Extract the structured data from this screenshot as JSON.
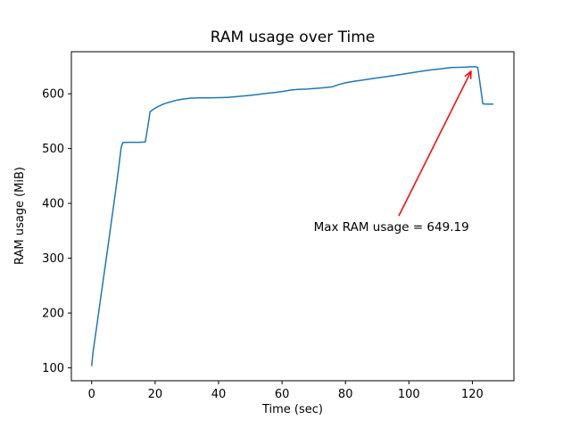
{
  "window": {
    "background": "#ffffff"
  },
  "chart_data": {
    "type": "line",
    "title": "RAM usage over Time",
    "xlabel": "Time (sec)",
    "ylabel": "RAM usage (MiB)",
    "xlim": [
      -6.4,
      133.1
    ],
    "ylim": [
      76.5,
      676.7
    ],
    "x_ticks": [
      0,
      20,
      40,
      60,
      80,
      100,
      120
    ],
    "y_ticks": [
      100,
      200,
      300,
      400,
      500,
      600
    ],
    "grid": false,
    "legend": false,
    "series": [
      {
        "name": "RAM usage",
        "color": "#1f77b4",
        "line_width": 1.5,
        "points": [
          [
            0,
            104
          ],
          [
            0.4,
            128
          ],
          [
            1.5,
            172
          ],
          [
            3,
            234
          ],
          [
            4.5,
            296
          ],
          [
            6,
            358
          ],
          [
            7.5,
            420
          ],
          [
            8.5,
            465
          ],
          [
            9.3,
            502
          ],
          [
            9.8,
            511
          ],
          [
            11,
            511.5
          ],
          [
            13,
            511.5
          ],
          [
            15,
            511.5
          ],
          [
            16.9,
            512
          ],
          [
            17.6,
            536
          ],
          [
            18.4,
            567
          ],
          [
            19.5,
            572
          ],
          [
            21,
            577
          ],
          [
            23,
            582
          ],
          [
            25,
            585.5
          ],
          [
            27,
            588.5
          ],
          [
            29,
            590.5
          ],
          [
            31,
            592
          ],
          [
            34,
            592.5
          ],
          [
            37,
            592.5
          ],
          [
            40,
            593
          ],
          [
            43,
            593.5
          ],
          [
            46,
            595
          ],
          [
            49,
            596.5
          ],
          [
            52,
            598.5
          ],
          [
            55,
            600.5
          ],
          [
            58,
            602.5
          ],
          [
            61,
            605
          ],
          [
            63,
            607
          ],
          [
            65,
            608
          ],
          [
            68,
            608.5
          ],
          [
            70,
            609.5
          ],
          [
            72,
            610.5
          ],
          [
            74,
            611.5
          ],
          [
            76,
            613
          ],
          [
            78,
            617
          ],
          [
            80,
            620
          ],
          [
            83,
            623
          ],
          [
            86,
            625.5
          ],
          [
            89,
            628
          ],
          [
            92,
            630.5
          ],
          [
            95,
            633
          ],
          [
            98,
            635.5
          ],
          [
            101,
            638.5
          ],
          [
            104,
            641
          ],
          [
            107,
            643.5
          ],
          [
            110,
            645.5
          ],
          [
            112,
            647
          ],
          [
            114,
            648
          ],
          [
            116,
            648.3
          ],
          [
            118,
            648.6
          ],
          [
            119.2,
            649.19
          ],
          [
            121,
            649.19
          ],
          [
            121.7,
            648
          ],
          [
            123.3,
            581.5
          ],
          [
            124.5,
            581.2
          ],
          [
            126.5,
            581.2
          ]
        ]
      }
    ],
    "annotation": {
      "text": "Max RAM usage = 649.19",
      "value": 649.19,
      "color": "#ff0000",
      "text_pos": [
        70,
        350
      ],
      "arrow_start": [
        96.8,
        377
      ],
      "arrow_end": [
        119.6,
        641
      ]
    }
  }
}
